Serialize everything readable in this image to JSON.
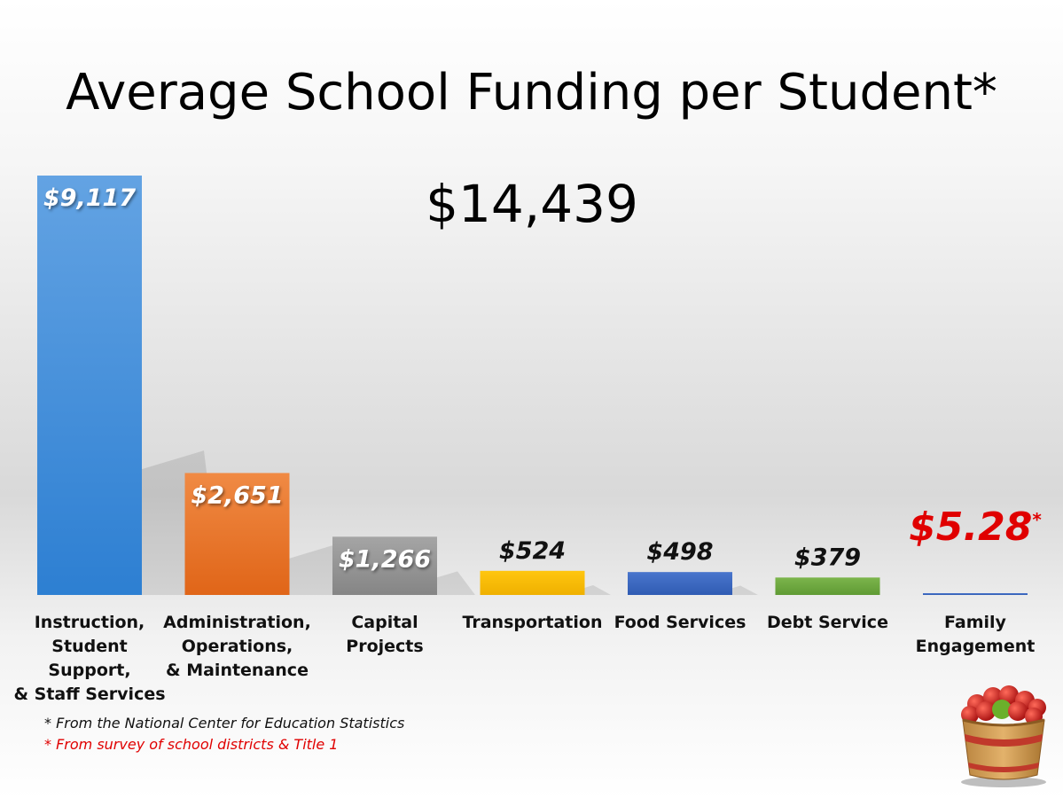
{
  "title": "Average School Funding per Student*",
  "total": "$14,439",
  "footnotes": [
    "*  From the National Center for Education Statistics",
    "*  From survey of school districts & Title 1"
  ],
  "colors": {
    "instruction": "#3a86d4",
    "administration": "#e8712a",
    "capital": "#8f8f8f",
    "transportation": "#f5b800",
    "food": "#3a66bf",
    "debt": "#6aa53d",
    "family": "#3a66bf",
    "highlight": "#e00000"
  },
  "chart_data": {
    "type": "bar",
    "title": "Average School Funding per Student*",
    "categories": [
      "Instruction,\nStudent Support,\n& Staff Services",
      "Administration,\nOperations,\n& Maintenance",
      "Capital\nProjects",
      "Transportation",
      "Food Services",
      "Debt Service",
      "Family\nEngagement"
    ],
    "values": [
      9117,
      2651,
      1266,
      524,
      498,
      379,
      5.28
    ],
    "value_labels": [
      "$9,117",
      "$2,651",
      "$1,266",
      "$524",
      "$498",
      "$379",
      "$5.28"
    ],
    "value_label_suffix": [
      "",
      "",
      "",
      "",
      "",
      "",
      "*"
    ],
    "bar_colors": [
      "#3a86d4",
      "#e8712a",
      "#8f8f8f",
      "#f5b800",
      "#3a66bf",
      "#6aa53d",
      "#3a66bf"
    ],
    "ylim": [
      0,
      9117
    ],
    "grid": false,
    "legend": "none"
  }
}
